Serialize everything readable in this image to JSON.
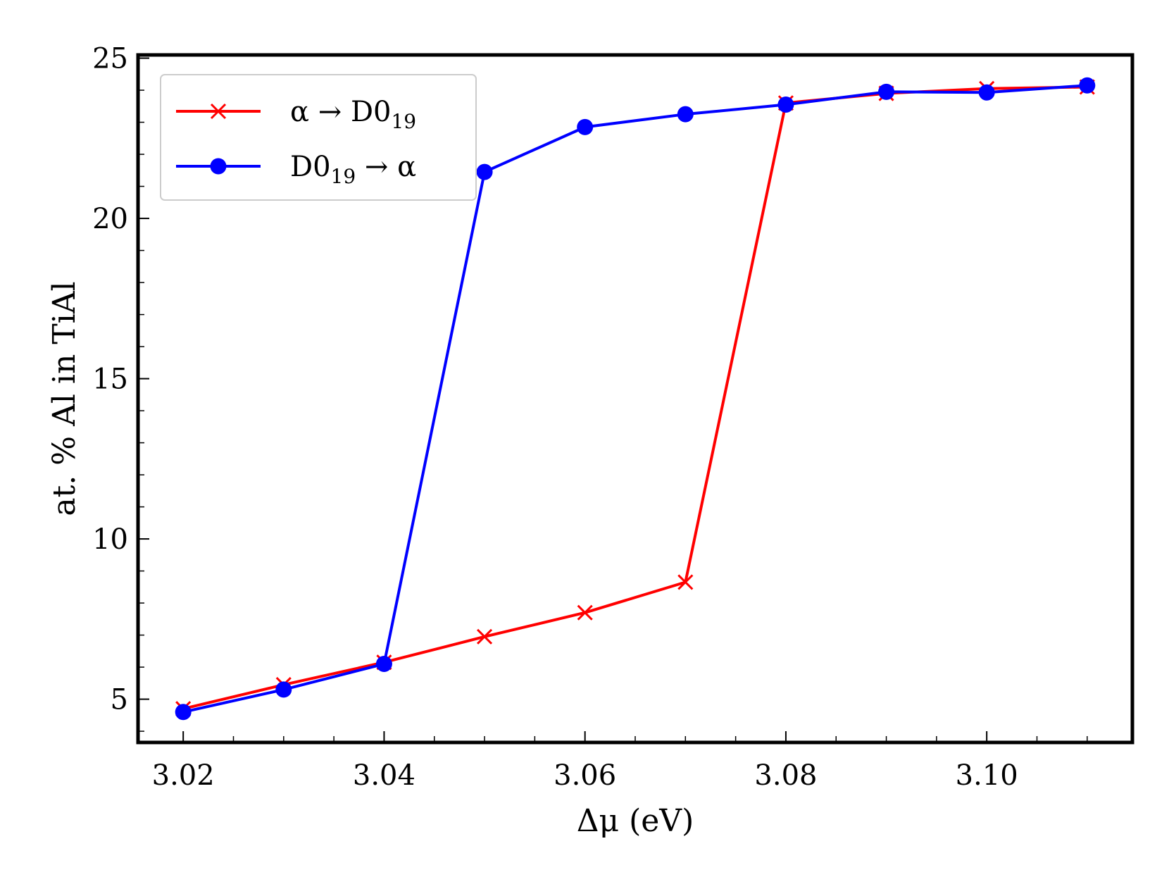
{
  "chart_data": {
    "type": "line",
    "title": "",
    "xlabel": "Δμ (eV)",
    "ylabel": "at. % Al in TiAl",
    "xlim": [
      3.0155,
      3.1145
    ],
    "ylim": [
      3.65,
      25.1
    ],
    "xticks": [
      3.02,
      3.04,
      3.06,
      3.08,
      3.1
    ],
    "xtick_labels": [
      "3.02",
      "3.04",
      "3.06",
      "3.08",
      "3.10"
    ],
    "yticks": [
      5,
      10,
      15,
      20,
      25
    ],
    "ytick_labels": [
      "5",
      "10",
      "15",
      "20",
      "25"
    ],
    "grid": false,
    "legend_position": "top-left",
    "series": [
      {
        "name": "α → D0₁₉",
        "legend": {
          "before": "α → D0",
          "sub": "19",
          "after": ""
        },
        "color": "#ff0000",
        "marker": "x",
        "x": [
          3.02,
          3.03,
          3.04,
          3.05,
          3.06,
          3.07,
          3.08,
          3.09,
          3.1,
          3.11
        ],
        "y": [
          4.7,
          5.45,
          6.15,
          6.95,
          7.7,
          8.65,
          23.6,
          23.9,
          24.05,
          24.1
        ]
      },
      {
        "name": "D0₁₉ → α",
        "legend": {
          "before": "D0",
          "sub": "19",
          "after": " → α"
        },
        "color": "#0000ff",
        "marker": "o",
        "x": [
          3.02,
          3.03,
          3.04,
          3.05,
          3.06,
          3.07,
          3.08,
          3.09,
          3.1,
          3.11
        ],
        "y": [
          4.6,
          5.3,
          6.1,
          21.45,
          22.85,
          23.25,
          23.55,
          23.95,
          23.93,
          24.15
        ]
      }
    ]
  }
}
